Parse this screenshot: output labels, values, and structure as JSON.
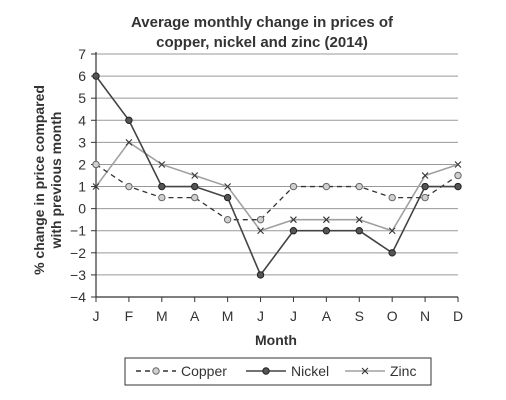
{
  "chart_data": {
    "type": "line",
    "title": [
      "Average monthly change in prices of",
      "copper, nickel and zinc (2014)"
    ],
    "xlabel": "Month",
    "ylabel": [
      "% change in price compared",
      "with previous month"
    ],
    "categories": [
      "J",
      "F",
      "M",
      "A",
      "M",
      "J",
      "J",
      "A",
      "S",
      "O",
      "N",
      "D"
    ],
    "ylim": [
      -4,
      7
    ],
    "yticks": [
      "7",
      "6",
      "5",
      "4",
      "3",
      "2",
      "1",
      "0",
      "−1",
      "−2",
      "−3",
      "−4"
    ],
    "grid": true,
    "legend_position": "bottom",
    "series": [
      {
        "name": "Copper",
        "style": "dashed",
        "marker": "circle-open",
        "color": "#333333",
        "values": [
          2,
          1,
          0.5,
          0.5,
          -0.5,
          -0.5,
          1,
          1,
          1,
          0.5,
          0.5,
          1.5
        ]
      },
      {
        "name": "Nickel",
        "style": "solid",
        "marker": "circle-filled",
        "color": "#444444",
        "values": [
          6,
          4,
          1,
          1,
          0.5,
          -3,
          -1,
          -1,
          -1,
          -2,
          1,
          1
        ]
      },
      {
        "name": "Zinc",
        "style": "solid",
        "marker": "cross",
        "color": "#a0a0a0",
        "values": [
          1,
          3,
          2,
          1.5,
          1,
          -1,
          -0.5,
          -0.5,
          -0.5,
          -1,
          1.5,
          2
        ]
      }
    ]
  }
}
